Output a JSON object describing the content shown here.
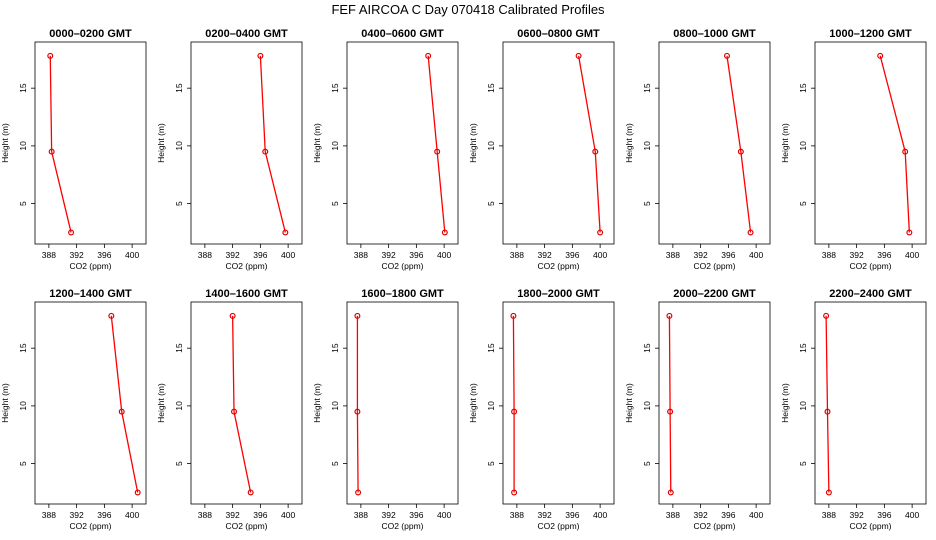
{
  "title": "FEF AIRCOA C  Day 070418  Calibrated Profiles",
  "chart_data": [
    {
      "type": "line",
      "title": "0000–0200 GMT",
      "xlabel": "CO2 (ppm)",
      "ylabel": "Height (m)",
      "xlim": [
        386,
        402
      ],
      "ylim": [
        1.5,
        19
      ],
      "xticks": [
        388,
        392,
        396,
        400
      ],
      "yticks": [
        5,
        10,
        15
      ],
      "x": [
        388.2,
        388.4,
        391.2
      ],
      "y": [
        17.8,
        9.5,
        2.5
      ]
    },
    {
      "type": "line",
      "title": "0200–0400 GMT",
      "xlabel": "CO2 (ppm)",
      "ylabel": "Height (m)",
      "xlim": [
        386,
        402
      ],
      "ylim": [
        1.5,
        19
      ],
      "xticks": [
        388,
        392,
        396,
        400
      ],
      "yticks": [
        5,
        10,
        15
      ],
      "x": [
        396.0,
        396.7,
        399.6
      ],
      "y": [
        17.8,
        9.5,
        2.5
      ]
    },
    {
      "type": "line",
      "title": "0400–0600 GMT",
      "xlabel": "CO2 (ppm)",
      "ylabel": "Height (m)",
      "xlim": [
        386,
        402
      ],
      "ylim": [
        1.5,
        19
      ],
      "xticks": [
        388,
        392,
        396,
        400
      ],
      "yticks": [
        5,
        10,
        15
      ],
      "x": [
        397.7,
        399.0,
        400.1
      ],
      "y": [
        17.8,
        9.5,
        2.5
      ]
    },
    {
      "type": "line",
      "title": "0600–0800 GMT",
      "xlabel": "CO2 (ppm)",
      "ylabel": "Height (m)",
      "xlim": [
        386,
        402
      ],
      "ylim": [
        1.5,
        19
      ],
      "xticks": [
        388,
        392,
        396,
        400
      ],
      "yticks": [
        5,
        10,
        15
      ],
      "x": [
        396.9,
        399.3,
        400.0
      ],
      "y": [
        17.8,
        9.5,
        2.5
      ]
    },
    {
      "type": "line",
      "title": "0800–1000 GMT",
      "xlabel": "CO2 (ppm)",
      "ylabel": "Height (m)",
      "xlim": [
        386,
        402
      ],
      "ylim": [
        1.5,
        19
      ],
      "xticks": [
        388,
        392,
        396,
        400
      ],
      "yticks": [
        5,
        10,
        15
      ],
      "x": [
        395.8,
        397.8,
        399.2
      ],
      "y": [
        17.8,
        9.5,
        2.5
      ]
    },
    {
      "type": "line",
      "title": "1000–1200 GMT",
      "xlabel": "CO2 (ppm)",
      "ylabel": "Height (m)",
      "xlim": [
        386,
        402
      ],
      "ylim": [
        1.5,
        19
      ],
      "xticks": [
        388,
        392,
        396,
        400
      ],
      "yticks": [
        5,
        10,
        15
      ],
      "x": [
        395.4,
        399.0,
        399.6
      ],
      "y": [
        17.8,
        9.5,
        2.5
      ]
    },
    {
      "type": "line",
      "title": "1200–1400 GMT",
      "xlabel": "CO2 (ppm)",
      "ylabel": "Height (m)",
      "xlim": [
        386,
        402
      ],
      "ylim": [
        1.5,
        19
      ],
      "xticks": [
        388,
        392,
        396,
        400
      ],
      "yticks": [
        5,
        10,
        15
      ],
      "x": [
        397.0,
        398.5,
        400.8
      ],
      "y": [
        17.8,
        9.5,
        2.5
      ]
    },
    {
      "type": "line",
      "title": "1400–1600 GMT",
      "xlabel": "CO2 (ppm)",
      "ylabel": "Height (m)",
      "xlim": [
        386,
        402
      ],
      "ylim": [
        1.5,
        19
      ],
      "xticks": [
        388,
        392,
        396,
        400
      ],
      "yticks": [
        5,
        10,
        15
      ],
      "x": [
        392.0,
        392.2,
        394.6
      ],
      "y": [
        17.8,
        9.5,
        2.5
      ]
    },
    {
      "type": "line",
      "title": "1600–1800 GMT",
      "xlabel": "CO2 (ppm)",
      "ylabel": "Height (m)",
      "xlim": [
        386,
        402
      ],
      "ylim": [
        1.5,
        19
      ],
      "xticks": [
        388,
        392,
        396,
        400
      ],
      "yticks": [
        5,
        10,
        15
      ],
      "x": [
        387.5,
        387.5,
        387.6
      ],
      "y": [
        17.8,
        9.5,
        2.5
      ]
    },
    {
      "type": "line",
      "title": "1800–2000 GMT",
      "xlabel": "CO2 (ppm)",
      "ylabel": "Height (m)",
      "xlim": [
        386,
        402
      ],
      "ylim": [
        1.5,
        19
      ],
      "xticks": [
        388,
        392,
        396,
        400
      ],
      "yticks": [
        5,
        10,
        15
      ],
      "x": [
        387.5,
        387.6,
        387.6
      ],
      "y": [
        17.8,
        9.5,
        2.5
      ]
    },
    {
      "type": "line",
      "title": "2000–2200 GMT",
      "xlabel": "CO2 (ppm)",
      "ylabel": "Height (m)",
      "xlim": [
        386,
        402
      ],
      "ylim": [
        1.5,
        19
      ],
      "xticks": [
        388,
        392,
        396,
        400
      ],
      "yticks": [
        5,
        10,
        15
      ],
      "x": [
        387.5,
        387.6,
        387.7
      ],
      "y": [
        17.8,
        9.5,
        2.5
      ]
    },
    {
      "type": "line",
      "title": "2200–2400 GMT",
      "xlabel": "CO2 (ppm)",
      "ylabel": "Height (m)",
      "xlim": [
        386,
        402
      ],
      "ylim": [
        1.5,
        19
      ],
      "xticks": [
        388,
        392,
        396,
        400
      ],
      "yticks": [
        5,
        10,
        15
      ],
      "x": [
        387.6,
        387.8,
        388.0
      ],
      "y": [
        17.8,
        9.5,
        2.5
      ]
    }
  ]
}
